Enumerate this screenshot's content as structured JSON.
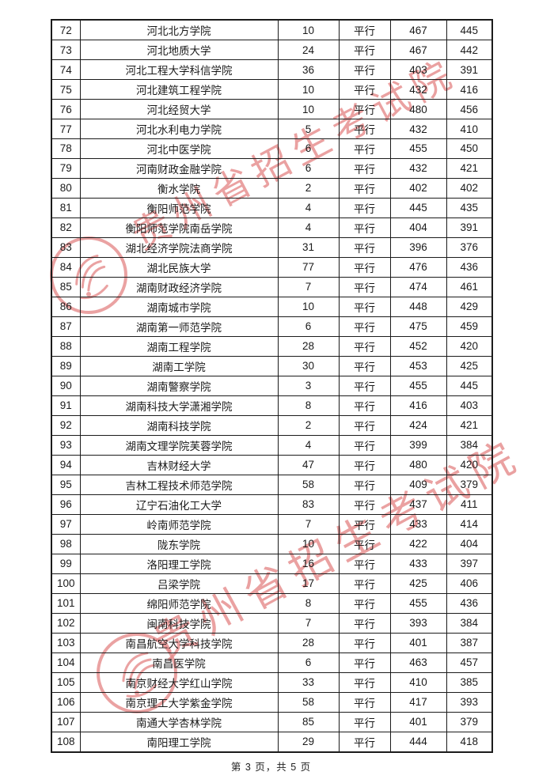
{
  "doc": {
    "watermark_text": "贵州省招生考试院",
    "watermark_color": "#e27e7e",
    "seal_color": "#e68c8c",
    "footer_text": "第 3 页，共 5 页"
  },
  "table": {
    "rows": [
      {
        "num": "72",
        "name": "河北北方学院",
        "plan": "10",
        "mode": "平行",
        "score1": "467",
        "score2": "445"
      },
      {
        "num": "73",
        "name": "河北地质大学",
        "plan": "24",
        "mode": "平行",
        "score1": "467",
        "score2": "442"
      },
      {
        "num": "74",
        "name": "河北工程大学科信学院",
        "plan": "36",
        "mode": "平行",
        "score1": "403",
        "score2": "391"
      },
      {
        "num": "75",
        "name": "河北建筑工程学院",
        "plan": "10",
        "mode": "平行",
        "score1": "432",
        "score2": "416"
      },
      {
        "num": "76",
        "name": "河北经贸大学",
        "plan": "10",
        "mode": "平行",
        "score1": "480",
        "score2": "456"
      },
      {
        "num": "77",
        "name": "河北水利电力学院",
        "plan": "5",
        "mode": "平行",
        "score1": "432",
        "score2": "410"
      },
      {
        "num": "78",
        "name": "河北中医学院",
        "plan": "6",
        "mode": "平行",
        "score1": "455",
        "score2": "450"
      },
      {
        "num": "79",
        "name": "河南财政金融学院",
        "plan": "6",
        "mode": "平行",
        "score1": "432",
        "score2": "421"
      },
      {
        "num": "80",
        "name": "衡水学院",
        "plan": "2",
        "mode": "平行",
        "score1": "402",
        "score2": "402"
      },
      {
        "num": "81",
        "name": "衡阳师范学院",
        "plan": "4",
        "mode": "平行",
        "score1": "445",
        "score2": "435"
      },
      {
        "num": "82",
        "name": "衡阳师范学院南岳学院",
        "plan": "4",
        "mode": "平行",
        "score1": "404",
        "score2": "391"
      },
      {
        "num": "83",
        "name": "湖北经济学院法商学院",
        "plan": "31",
        "mode": "平行",
        "score1": "396",
        "score2": "376"
      },
      {
        "num": "84",
        "name": "湖北民族大学",
        "plan": "77",
        "mode": "平行",
        "score1": "476",
        "score2": "436"
      },
      {
        "num": "85",
        "name": "湖南财政经济学院",
        "plan": "7",
        "mode": "平行",
        "score1": "474",
        "score2": "461"
      },
      {
        "num": "86",
        "name": "湖南城市学院",
        "plan": "10",
        "mode": "平行",
        "score1": "448",
        "score2": "429"
      },
      {
        "num": "87",
        "name": "湖南第一师范学院",
        "plan": "6",
        "mode": "平行",
        "score1": "475",
        "score2": "459"
      },
      {
        "num": "88",
        "name": "湖南工程学院",
        "plan": "28",
        "mode": "平行",
        "score1": "452",
        "score2": "420"
      },
      {
        "num": "89",
        "name": "湖南工学院",
        "plan": "30",
        "mode": "平行",
        "score1": "453",
        "score2": "425"
      },
      {
        "num": "90",
        "name": "湖南警察学院",
        "plan": "3",
        "mode": "平行",
        "score1": "455",
        "score2": "445"
      },
      {
        "num": "91",
        "name": "湖南科技大学潇湘学院",
        "plan": "8",
        "mode": "平行",
        "score1": "416",
        "score2": "403"
      },
      {
        "num": "92",
        "name": "湖南科技学院",
        "plan": "2",
        "mode": "平行",
        "score1": "424",
        "score2": "421"
      },
      {
        "num": "93",
        "name": "湖南文理学院芙蓉学院",
        "plan": "4",
        "mode": "平行",
        "score1": "399",
        "score2": "384"
      },
      {
        "num": "94",
        "name": "吉林财经大学",
        "plan": "47",
        "mode": "平行",
        "score1": "480",
        "score2": "420"
      },
      {
        "num": "95",
        "name": "吉林工程技术师范学院",
        "plan": "58",
        "mode": "平行",
        "score1": "409",
        "score2": "379"
      },
      {
        "num": "96",
        "name": "辽宁石油化工大学",
        "plan": "83",
        "mode": "平行",
        "score1": "437",
        "score2": "411"
      },
      {
        "num": "97",
        "name": "岭南师范学院",
        "plan": "7",
        "mode": "平行",
        "score1": "433",
        "score2": "414"
      },
      {
        "num": "98",
        "name": "陇东学院",
        "plan": "10",
        "mode": "平行",
        "score1": "422",
        "score2": "404"
      },
      {
        "num": "99",
        "name": "洛阳理工学院",
        "plan": "16",
        "mode": "平行",
        "score1": "433",
        "score2": "397"
      },
      {
        "num": "100",
        "name": "吕梁学院",
        "plan": "17",
        "mode": "平行",
        "score1": "425",
        "score2": "406"
      },
      {
        "num": "101",
        "name": "绵阳师范学院",
        "plan": "8",
        "mode": "平行",
        "score1": "455",
        "score2": "436"
      },
      {
        "num": "102",
        "name": "闽南科技学院",
        "plan": "7",
        "mode": "平行",
        "score1": "393",
        "score2": "384"
      },
      {
        "num": "103",
        "name": "南昌航空大学科技学院",
        "plan": "28",
        "mode": "平行",
        "score1": "401",
        "score2": "387"
      },
      {
        "num": "104",
        "name": "南昌医学院",
        "plan": "6",
        "mode": "平行",
        "score1": "463",
        "score2": "457"
      },
      {
        "num": "105",
        "name": "南京财经大学红山学院",
        "plan": "33",
        "mode": "平行",
        "score1": "410",
        "score2": "385"
      },
      {
        "num": "106",
        "name": "南京理工大学紫金学院",
        "plan": "58",
        "mode": "平行",
        "score1": "417",
        "score2": "393"
      },
      {
        "num": "107",
        "name": "南通大学杏林学院",
        "plan": "85",
        "mode": "平行",
        "score1": "401",
        "score2": "379"
      },
      {
        "num": "108",
        "name": "南阳理工学院",
        "plan": "29",
        "mode": "平行",
        "score1": "444",
        "score2": "418"
      }
    ]
  }
}
